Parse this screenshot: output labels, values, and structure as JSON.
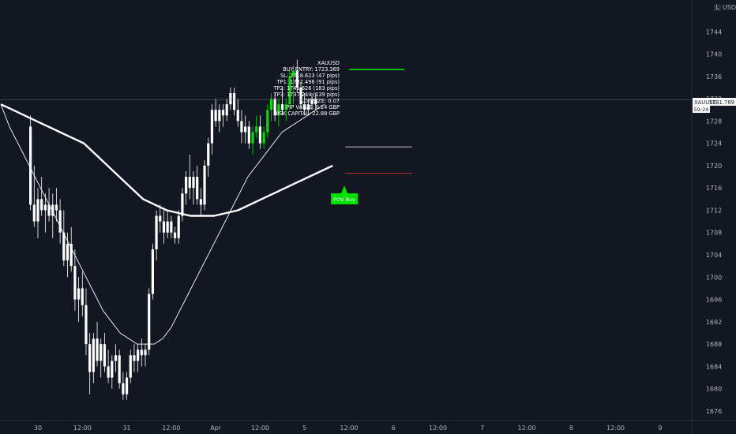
{
  "symbol": "XAUUSD",
  "currency": "USD",
  "last_price": "1731.789",
  "countdown": "59:24",
  "axis_toggle": "L",
  "signal_label": "POV Buy",
  "info_lines": [
    "XAUUSD",
    "BUY ENTRY: 1723.369",
    "SL: 1718.623 (47 pips)",
    "TP1: 1732.498 (91 pips)",
    "TP2: 1741.626 (183 pips)",
    "TP3: 1737.244 (139 pips)",
    "LOT SIZE: 0.07",
    "PIP VALUE: 0.14 GBP",
    "RISK CAPITAL: 22.88 GBP"
  ],
  "colors": {
    "background": "#131722",
    "bull_candle": "#ffffff",
    "bear_candle": "#ffffff",
    "signal_candle": "#00e000",
    "tp_line": "#00e000",
    "sl_line": "#e03030",
    "entry_line": "#ffffff",
    "axis_text": "#b2b5be"
  },
  "chart_data": {
    "type": "candlestick",
    "title": "",
    "y_ticks": [
      1676,
      1680,
      1684,
      1688,
      1692,
      1696,
      1700,
      1704,
      1708,
      1712,
      1716,
      1720,
      1724,
      1728,
      1732,
      1736,
      1740,
      1744
    ],
    "ylim": [
      1675,
      1748
    ],
    "x_tick_labels": [
      "30",
      "12:00",
      "31",
      "12:00",
      "Apr",
      "12:00",
      "5",
      "12:00",
      "6",
      "12:00",
      "7",
      "12:00",
      "8",
      "12:00",
      "9",
      "12:00"
    ],
    "x_tick_bar_index": [
      0,
      12,
      24,
      36,
      48,
      60,
      72,
      84,
      96,
      108,
      120,
      132,
      144,
      156,
      168,
      180
    ],
    "xlim_bars": [
      -10,
      191
    ],
    "candles_ohlc": [
      [
        1727,
        1729,
        1712,
        1713
      ],
      [
        1713,
        1720,
        1709,
        1710
      ],
      [
        1710,
        1716,
        1707,
        1714
      ],
      [
        1714,
        1718,
        1711,
        1712
      ],
      [
        1712,
        1715,
        1708,
        1713
      ],
      [
        1713,
        1716,
        1710,
        1711
      ],
      [
        1711,
        1715,
        1707,
        1713
      ],
      [
        1713,
        1716,
        1710,
        1712
      ],
      [
        1712,
        1714,
        1706,
        1708
      ],
      [
        1708,
        1712,
        1702,
        1703
      ],
      [
        1703,
        1708,
        1700,
        1706
      ],
      [
        1706,
        1709,
        1701,
        1702
      ],
      [
        1702,
        1705,
        1694,
        1696
      ],
      [
        1696,
        1700,
        1692,
        1698
      ],
      [
        1698,
        1701,
        1693,
        1695
      ],
      [
        1695,
        1698,
        1686,
        1688
      ],
      [
        1688,
        1690,
        1679,
        1683
      ],
      [
        1683,
        1690,
        1681,
        1689
      ],
      [
        1689,
        1692,
        1684,
        1685
      ],
      [
        1685,
        1689,
        1682,
        1688
      ],
      [
        1688,
        1690,
        1683,
        1684
      ],
      [
        1684,
        1687,
        1681,
        1682
      ],
      [
        1682,
        1686,
        1680,
        1685
      ],
      [
        1685,
        1688,
        1683,
        1686
      ],
      [
        1686,
        1687,
        1680,
        1681
      ],
      [
        1681,
        1683,
        1678,
        1679
      ],
      [
        1679,
        1683,
        1678,
        1682
      ],
      [
        1682,
        1687,
        1681,
        1686
      ],
      [
        1686,
        1688,
        1683,
        1685
      ],
      [
        1685,
        1688,
        1683,
        1687
      ],
      [
        1687,
        1689,
        1684,
        1686
      ],
      [
        1686,
        1688,
        1684,
        1687
      ],
      [
        1687,
        1698,
        1686,
        1697
      ],
      [
        1697,
        1706,
        1696,
        1705
      ],
      [
        1705,
        1712,
        1703,
        1711
      ],
      [
        1711,
        1713,
        1708,
        1710
      ],
      [
        1710,
        1712,
        1706,
        1708
      ],
      [
        1708,
        1712,
        1707,
        1710
      ],
      [
        1710,
        1711,
        1707,
        1708
      ],
      [
        1708,
        1709,
        1706,
        1707
      ],
      [
        1707,
        1712,
        1706,
        1711
      ],
      [
        1711,
        1716,
        1710,
        1715
      ],
      [
        1715,
        1719,
        1713,
        1718
      ],
      [
        1718,
        1722,
        1714,
        1716
      ],
      [
        1716,
        1719,
        1713,
        1718
      ],
      [
        1718,
        1720,
        1713,
        1714
      ],
      [
        1714,
        1716,
        1711,
        1713
      ],
      [
        1713,
        1721,
        1712,
        1720
      ],
      [
        1720,
        1725,
        1718,
        1724
      ],
      [
        1724,
        1731,
        1722,
        1730
      ],
      [
        1730,
        1732,
        1727,
        1728
      ],
      [
        1728,
        1731,
        1726,
        1730
      ],
      [
        1730,
        1731,
        1727,
        1729
      ],
      [
        1729,
        1732,
        1728,
        1731
      ],
      [
        1731,
        1734,
        1730,
        1733
      ],
      [
        1733,
        1734,
        1729,
        1730
      ],
      [
        1730,
        1732,
        1727,
        1728
      ],
      [
        1728,
        1730,
        1724,
        1726
      ],
      [
        1726,
        1729,
        1724,
        1727
      ],
      [
        1727,
        1728,
        1723,
        1724
      ],
      [
        1724,
        1727,
        1722,
        1726
      ],
      [
        1726,
        1729,
        1725,
        1727
      ],
      [
        1727,
        1729,
        1723,
        1724
      ],
      [
        1724,
        1727,
        1723,
        1726
      ],
      [
        1726,
        1731,
        1725,
        1730
      ],
      [
        1730,
        1733,
        1728,
        1732
      ],
      [
        1732,
        1733,
        1728,
        1729
      ],
      [
        1729,
        1732,
        1727,
        1731
      ],
      [
        1731,
        1734,
        1729,
        1730
      ],
      [
        1730,
        1732,
        1728,
        1731
      ],
      [
        1731,
        1737,
        1730,
        1736
      ],
      [
        1736,
        1738,
        1731,
        1737
      ],
      [
        1737,
        1739,
        1733,
        1734
      ],
      [
        1734,
        1735,
        1730,
        1731
      ],
      [
        1731,
        1733,
        1729,
        1730
      ],
      [
        1730,
        1732,
        1729,
        1731
      ],
      [
        1731,
        1733,
        1730,
        1732
      ],
      [
        1732,
        1733,
        1730,
        1731
      ]
    ],
    "signal_candle_range": [
      59,
      71
    ],
    "candle_start_index": -2,
    "ma_fast": [
      1731,
      1727,
      1724,
      1721,
      1718,
      1715,
      1712,
      1709,
      1706,
      1703,
      1700,
      1697,
      1694,
      1692,
      1690,
      1689,
      1688,
      1688,
      1688,
      1689,
      1691,
      1694,
      1697,
      1700,
      1703,
      1706,
      1709,
      1712,
      1715,
      1718,
      1720,
      1722,
      1724,
      1726,
      1727,
      1728,
      1729,
      1730,
      1731
    ],
    "ma_slow": [
      1731,
      1730,
      1729,
      1728,
      1727,
      1726,
      1725,
      1724,
      1722,
      1720,
      1718,
      1716,
      1714,
      1713,
      1712,
      1711.5,
      1711,
      1711,
      1711,
      1711.5,
      1712,
      1713,
      1714,
      1715,
      1716,
      1717,
      1718,
      1719,
      1720
    ],
    "entry_price": 1723.369,
    "sl_price": 1718.623,
    "tp_price": 1737.244
  }
}
